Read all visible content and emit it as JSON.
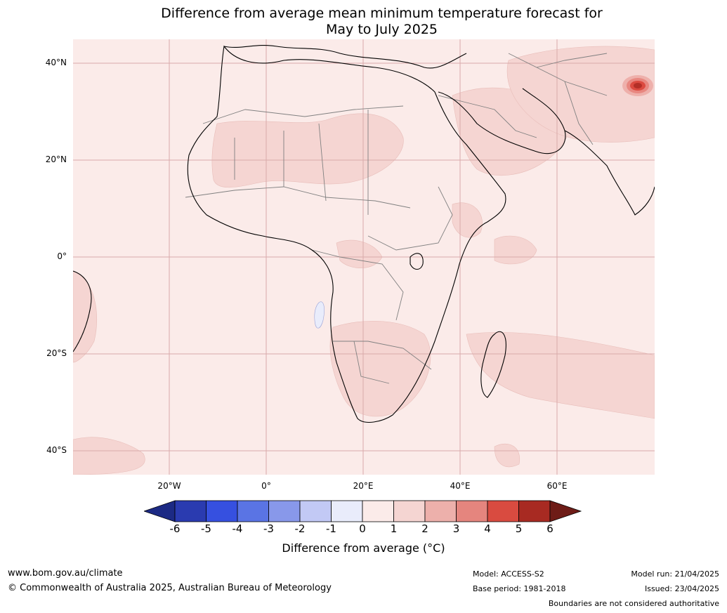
{
  "title": {
    "line1": "Difference from average mean minimum temperature forecast for",
    "line2": "May to July 2025"
  },
  "map": {
    "lat_labels": [
      "40°N",
      "20°N",
      "0°",
      "20°S",
      "40°S"
    ],
    "lon_labels": [
      "20°W",
      "0°",
      "20°E",
      "40°E",
      "60°E"
    ],
    "colors": {
      "ocean_base": "#fbebe9",
      "warm_1_2": "#f5d5d2",
      "warm_2_3": "#eeb0ab",
      "warm_3_4": "#e88780",
      "warm_4_5": "#dc4a40",
      "warm_5_6": "#b32f27",
      "cool_0_1": "#e9ecfb",
      "grid": "#d9aaaa",
      "coast": "#000000",
      "border": "#808080"
    }
  },
  "colorbar": {
    "ticks": [
      "-6",
      "-5",
      "-4",
      "-3",
      "-2",
      "-1",
      "0",
      "1",
      "2",
      "3",
      "4",
      "5",
      "6"
    ],
    "colors": [
      "#1c2a84",
      "#2a3bb0",
      "#3650e0",
      "#5a74e4",
      "#8898ea",
      "#c2c9f5",
      "#e9ecfb",
      "#fbebe9",
      "#f5d5d2",
      "#edb0ab",
      "#e5857e",
      "#d94b40",
      "#a82a22",
      "#6e1c17"
    ],
    "label": "Difference from average (°C)"
  },
  "footer": {
    "website": "www.bom.gov.au/climate",
    "copyright": "© Commonwealth of Australia 2025, Australian Bureau of Meteorology",
    "model": "Model: ACCESS-S2",
    "base_period": "Base period: 1981-2018",
    "model_run": "Model run: 21/04/2025",
    "issued": "Issued: 23/04/2025",
    "disclaimer": "Boundaries are not considered authoritative"
  }
}
